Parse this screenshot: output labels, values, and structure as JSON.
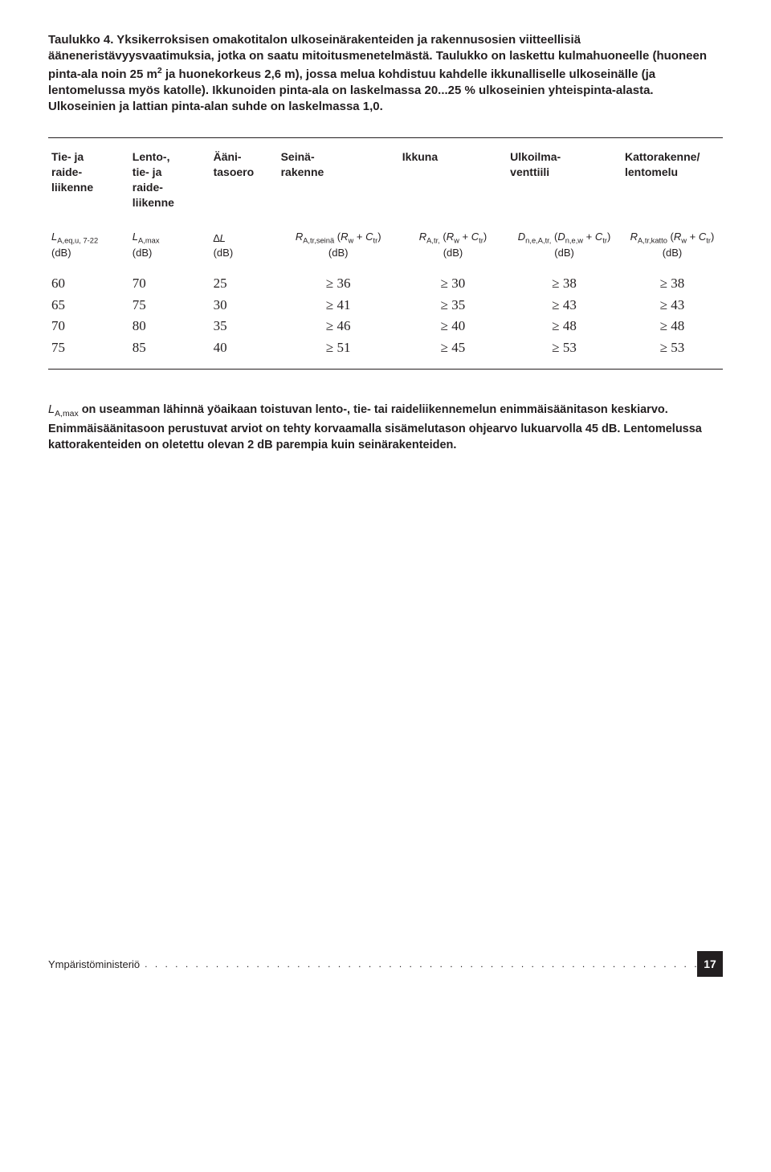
{
  "caption_html": "Taulukko 4. Yksikerroksisen omakotitalon ulkoseinärakenteiden ja rakennusosien viitteellisiä ääneneristävyysvaatimuksia, jotka on saatu mitoitusmenetelmästä. Taulukko on laskettu kulmahuoneelle (huoneen pinta-ala noin 25 m<span class=\"sup\">2</span> ja huonekorkeus 2,6 m), jossa melua kohdistuu kahdelle ikkunalliselle ulkoseinälle (ja lentomelussa myös katolle). Ikkunoiden pinta-ala on laskelmassa 20...25 % ulkoseinien yhteispinta-alasta. Ulkoseinien ja lattian pinta-alan suhde on laskelmassa 1,0.",
  "headers1": [
    "Tie- ja\nraide-\nliikenne",
    "Lento-,\ntie- ja\nraide-\nliikenne",
    "Ääni-\ntasoero",
    "Seinä-\nrakenne",
    "Ikkuna",
    "Ulkoilma-\nventtiili",
    "Kattorakenne/\nlentomelu"
  ],
  "headers2_html": [
    "<span class=\"sym\">L</span><span class=\"sub\">A,eq,u, 7-22</span><br>(dB)",
    "<span class=\"sym\">L</span><span class=\"sub\">A,max</span><br>(dB)",
    "∆<span class=\"sym\">L</span><br>(dB)",
    "<span class=\"sym\">R</span><span class=\"sub\">A,tr,seinä</span> (<span class=\"sym\">R</span><span class=\"sub\">w</span> + <span class=\"sym\">C</span><span class=\"sub\">tr</span>)<br>(dB)",
    "<span class=\"sym\">R</span><span class=\"sub\">A,tr,</span> (<span class=\"sym\">R</span><span class=\"sub\">w</span> + <span class=\"sym\">C</span><span class=\"sub\">tr</span>)<br>(dB)",
    "<span class=\"sym\">D</span><span class=\"sub\">n,e,A,tr,</span> (<span class=\"sym\">D</span><span class=\"sub\">n,e,w</span> + <span class=\"sym\">C</span><span class=\"sub\">tr</span>)<br>(dB)",
    "<span class=\"sym\">R</span><span class=\"sub\">A,tr,katto</span> (<span class=\"sym\">R</span><span class=\"sub\">w</span> + <span class=\"sym\">C</span><span class=\"sub\">tr</span>)<br>(dB)"
  ],
  "rows": [
    [
      "60",
      "70",
      "25",
      "≥ 36",
      "≥ 30",
      "≥ 38",
      "≥ 38"
    ],
    [
      "65",
      "75",
      "30",
      "≥ 41",
      "≥ 35",
      "≥ 43",
      "≥ 43"
    ],
    [
      "70",
      "80",
      "35",
      "≥ 46",
      "≥ 40",
      "≥ 48",
      "≥ 48"
    ],
    [
      "75",
      "85",
      "40",
      "≥ 51",
      "≥ 45",
      "≥ 53",
      "≥ 53"
    ]
  ],
  "footnote_html": "<span class=\"sym\">L</span><span class=\"sub\">A,max</span>  <b>on useamman lähinnä yöaikaan toistuvan lento-, tie- tai raideliikennemelun enimmäisäänitason keskiarvo. Enimmäisäänitasoon perustuvat arviot on tehty korvaamalla sisämelutason ohjearvo lukuarvolla 45 dB. Lentomelussa kattorakenteiden on oletettu olevan 2 dB parempia kuin seinärakenteiden.</b>",
  "footer_label": "Ympäristöministeriö",
  "page_number": "17"
}
